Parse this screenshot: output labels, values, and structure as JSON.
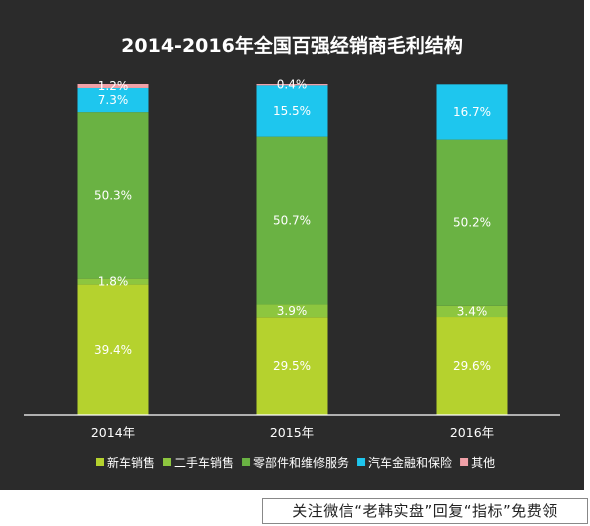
{
  "chart_data": {
    "type": "bar",
    "stacked": true,
    "title": "2014-2016年全国百强经销商毛利结构",
    "categories": [
      "2014年",
      "2015年",
      "2016年"
    ],
    "series": [
      {
        "name": "新车销售",
        "color": "#b5d22e",
        "values": [
          39.4,
          29.5,
          29.6
        ],
        "labels": [
          "39.4%",
          "29.5%",
          "29.6%"
        ]
      },
      {
        "name": "二手车销售",
        "color": "#8dc63f",
        "values": [
          1.8,
          3.9,
          3.4
        ],
        "labels": [
          "1.8%",
          "3.9%",
          "3.4%"
        ]
      },
      {
        "name": "零部件和维修服务",
        "color": "#6ab243",
        "values": [
          50.3,
          50.7,
          50.2
        ],
        "labels": [
          "50.3%",
          "50.7%",
          "50.2%"
        ]
      },
      {
        "name": "汽车金融和保险",
        "color": "#1ec6ee",
        "values": [
          7.3,
          15.5,
          16.7
        ],
        "labels": [
          "7.3%",
          "15.5%",
          "16.7%"
        ]
      },
      {
        "name": "其他",
        "color": "#f0a1a8",
        "values": [
          1.2,
          0.4,
          0
        ],
        "labels": [
          "1.2%",
          "0.4%",
          ""
        ]
      }
    ],
    "ylim": [
      0,
      100
    ],
    "grid": false,
    "legend_position": "bottom"
  },
  "watermark": {
    "text": "关注微信“老韩实盘”回复“指标”免费领"
  }
}
